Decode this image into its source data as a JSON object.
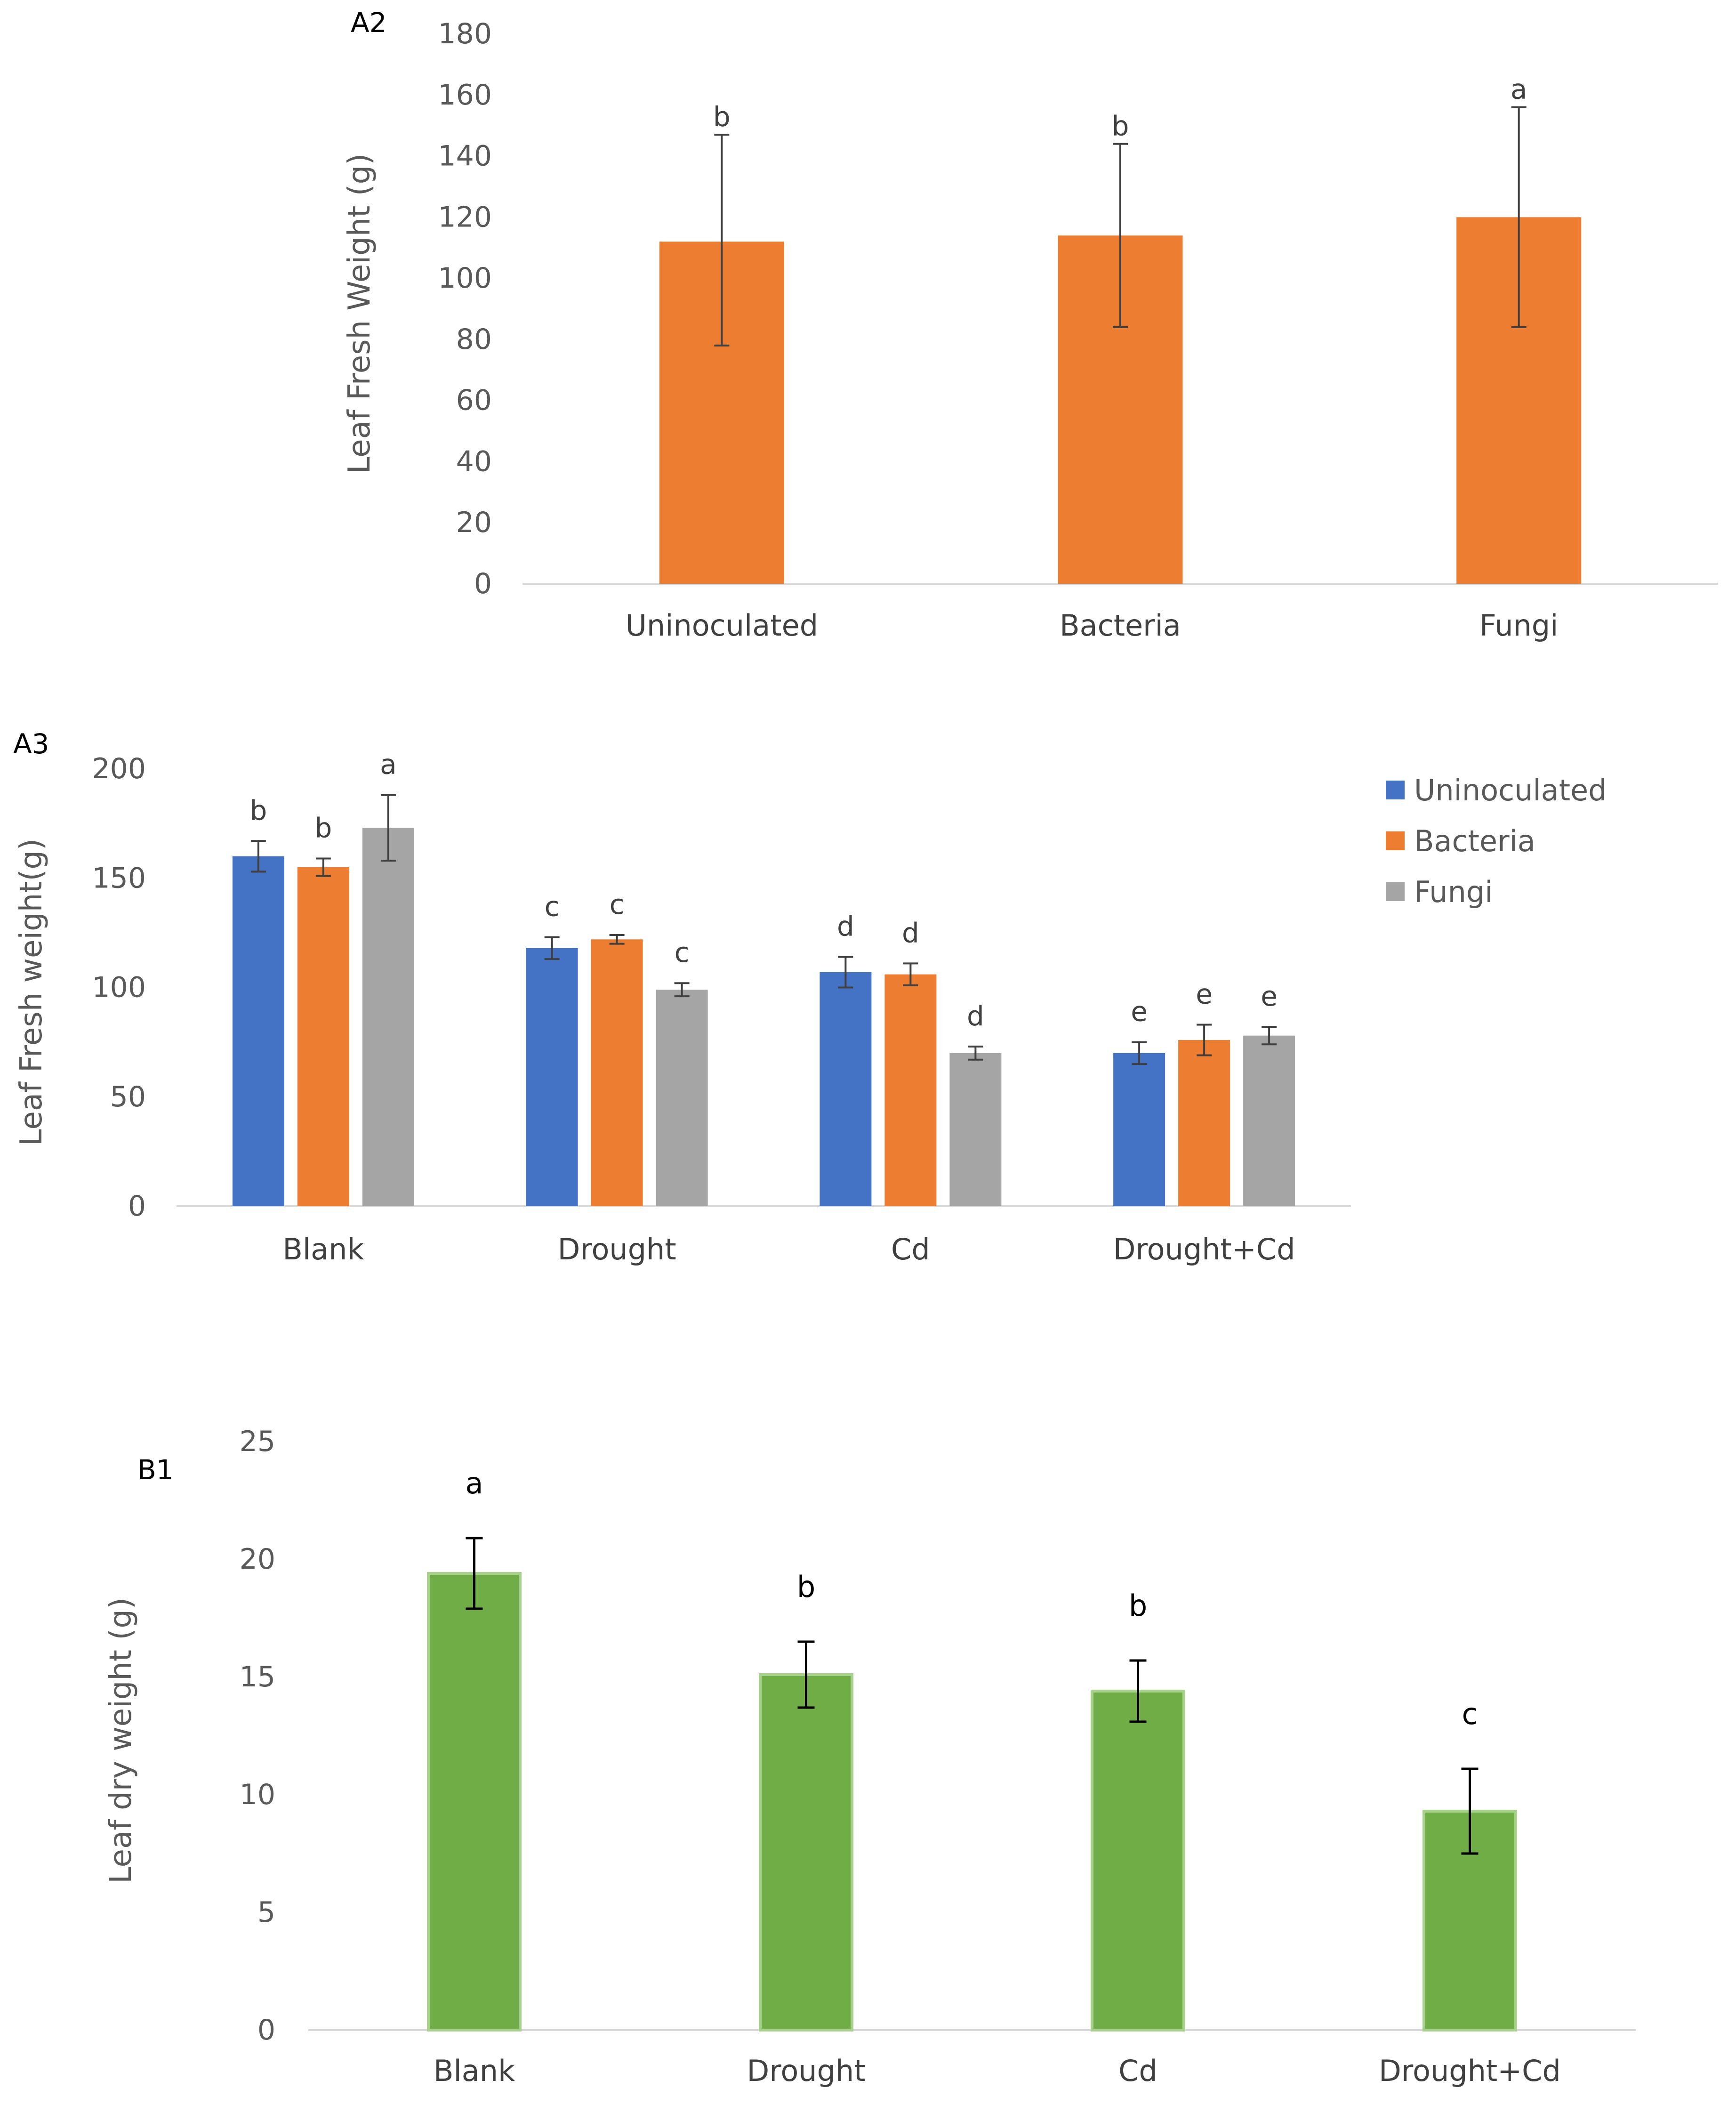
{
  "colors": {
    "uninoculated": "#4472C4",
    "bacteria": "#ED7D31",
    "fungi": "#A5A5A5",
    "green": "#70AD47",
    "green_edge": "#A9D18E",
    "axis": "#D9D9D9",
    "error": "#404040"
  },
  "chart_data": [
    {
      "id": "A2",
      "type": "bar",
      "panel_label": "A2",
      "ylabel": "Leaf Fresh Weight (g)",
      "xlabel": "",
      "ylim": [
        0,
        180
      ],
      "yticks": [
        0,
        20,
        40,
        60,
        80,
        100,
        120,
        140,
        160,
        180
      ],
      "grid": false,
      "categories": [
        "Uninoculated",
        "Bacteria",
        "Fungi"
      ],
      "values": [
        112,
        114,
        120
      ],
      "error_low": [
        78,
        84,
        84
      ],
      "error_high": [
        147,
        144,
        156
      ],
      "letters": [
        "b",
        "b",
        "a"
      ]
    },
    {
      "id": "A3",
      "type": "bar",
      "panel_label": "A3",
      "ylabel": "Leaf Fresh weight(g)",
      "xlabel": "",
      "ylim": [
        0,
        200
      ],
      "yticks": [
        0,
        50,
        100,
        150,
        200
      ],
      "grid": false,
      "legend_position": "right",
      "categories": [
        "Blank",
        "Drought",
        "Cd",
        "Drought+Cd"
      ],
      "series": [
        {
          "name": "Uninoculated",
          "values": [
            160,
            118,
            107,
            70
          ],
          "errors": [
            7,
            5,
            7,
            5
          ],
          "letters": [
            "b",
            "c",
            "d",
            "e"
          ]
        },
        {
          "name": "Bacteria",
          "values": [
            155,
            122,
            106,
            76
          ],
          "errors": [
            4,
            2,
            5,
            7
          ],
          "letters": [
            "b",
            "c",
            "d",
            "e"
          ]
        },
        {
          "name": "Fungi",
          "values": [
            173,
            99,
            70,
            78
          ],
          "errors": [
            15,
            3,
            3,
            4
          ],
          "letters": [
            "a",
            "c",
            "d",
            "e"
          ]
        }
      ]
    },
    {
      "id": "B1",
      "type": "bar",
      "panel_label": "B1",
      "ylabel": "Leaf dry weight (g)",
      "xlabel": "",
      "ylim": [
        0,
        25
      ],
      "yticks": [
        0,
        5,
        10,
        15,
        20,
        25
      ],
      "grid": false,
      "categories": [
        "Blank",
        "Drought",
        "Cd",
        "Drought+Cd"
      ],
      "values": [
        19.4,
        15.1,
        14.4,
        9.3
      ],
      "errors": [
        1.5,
        1.4,
        1.3,
        1.8
      ],
      "letters": [
        "a",
        "b",
        "b",
        "c"
      ]
    }
  ]
}
